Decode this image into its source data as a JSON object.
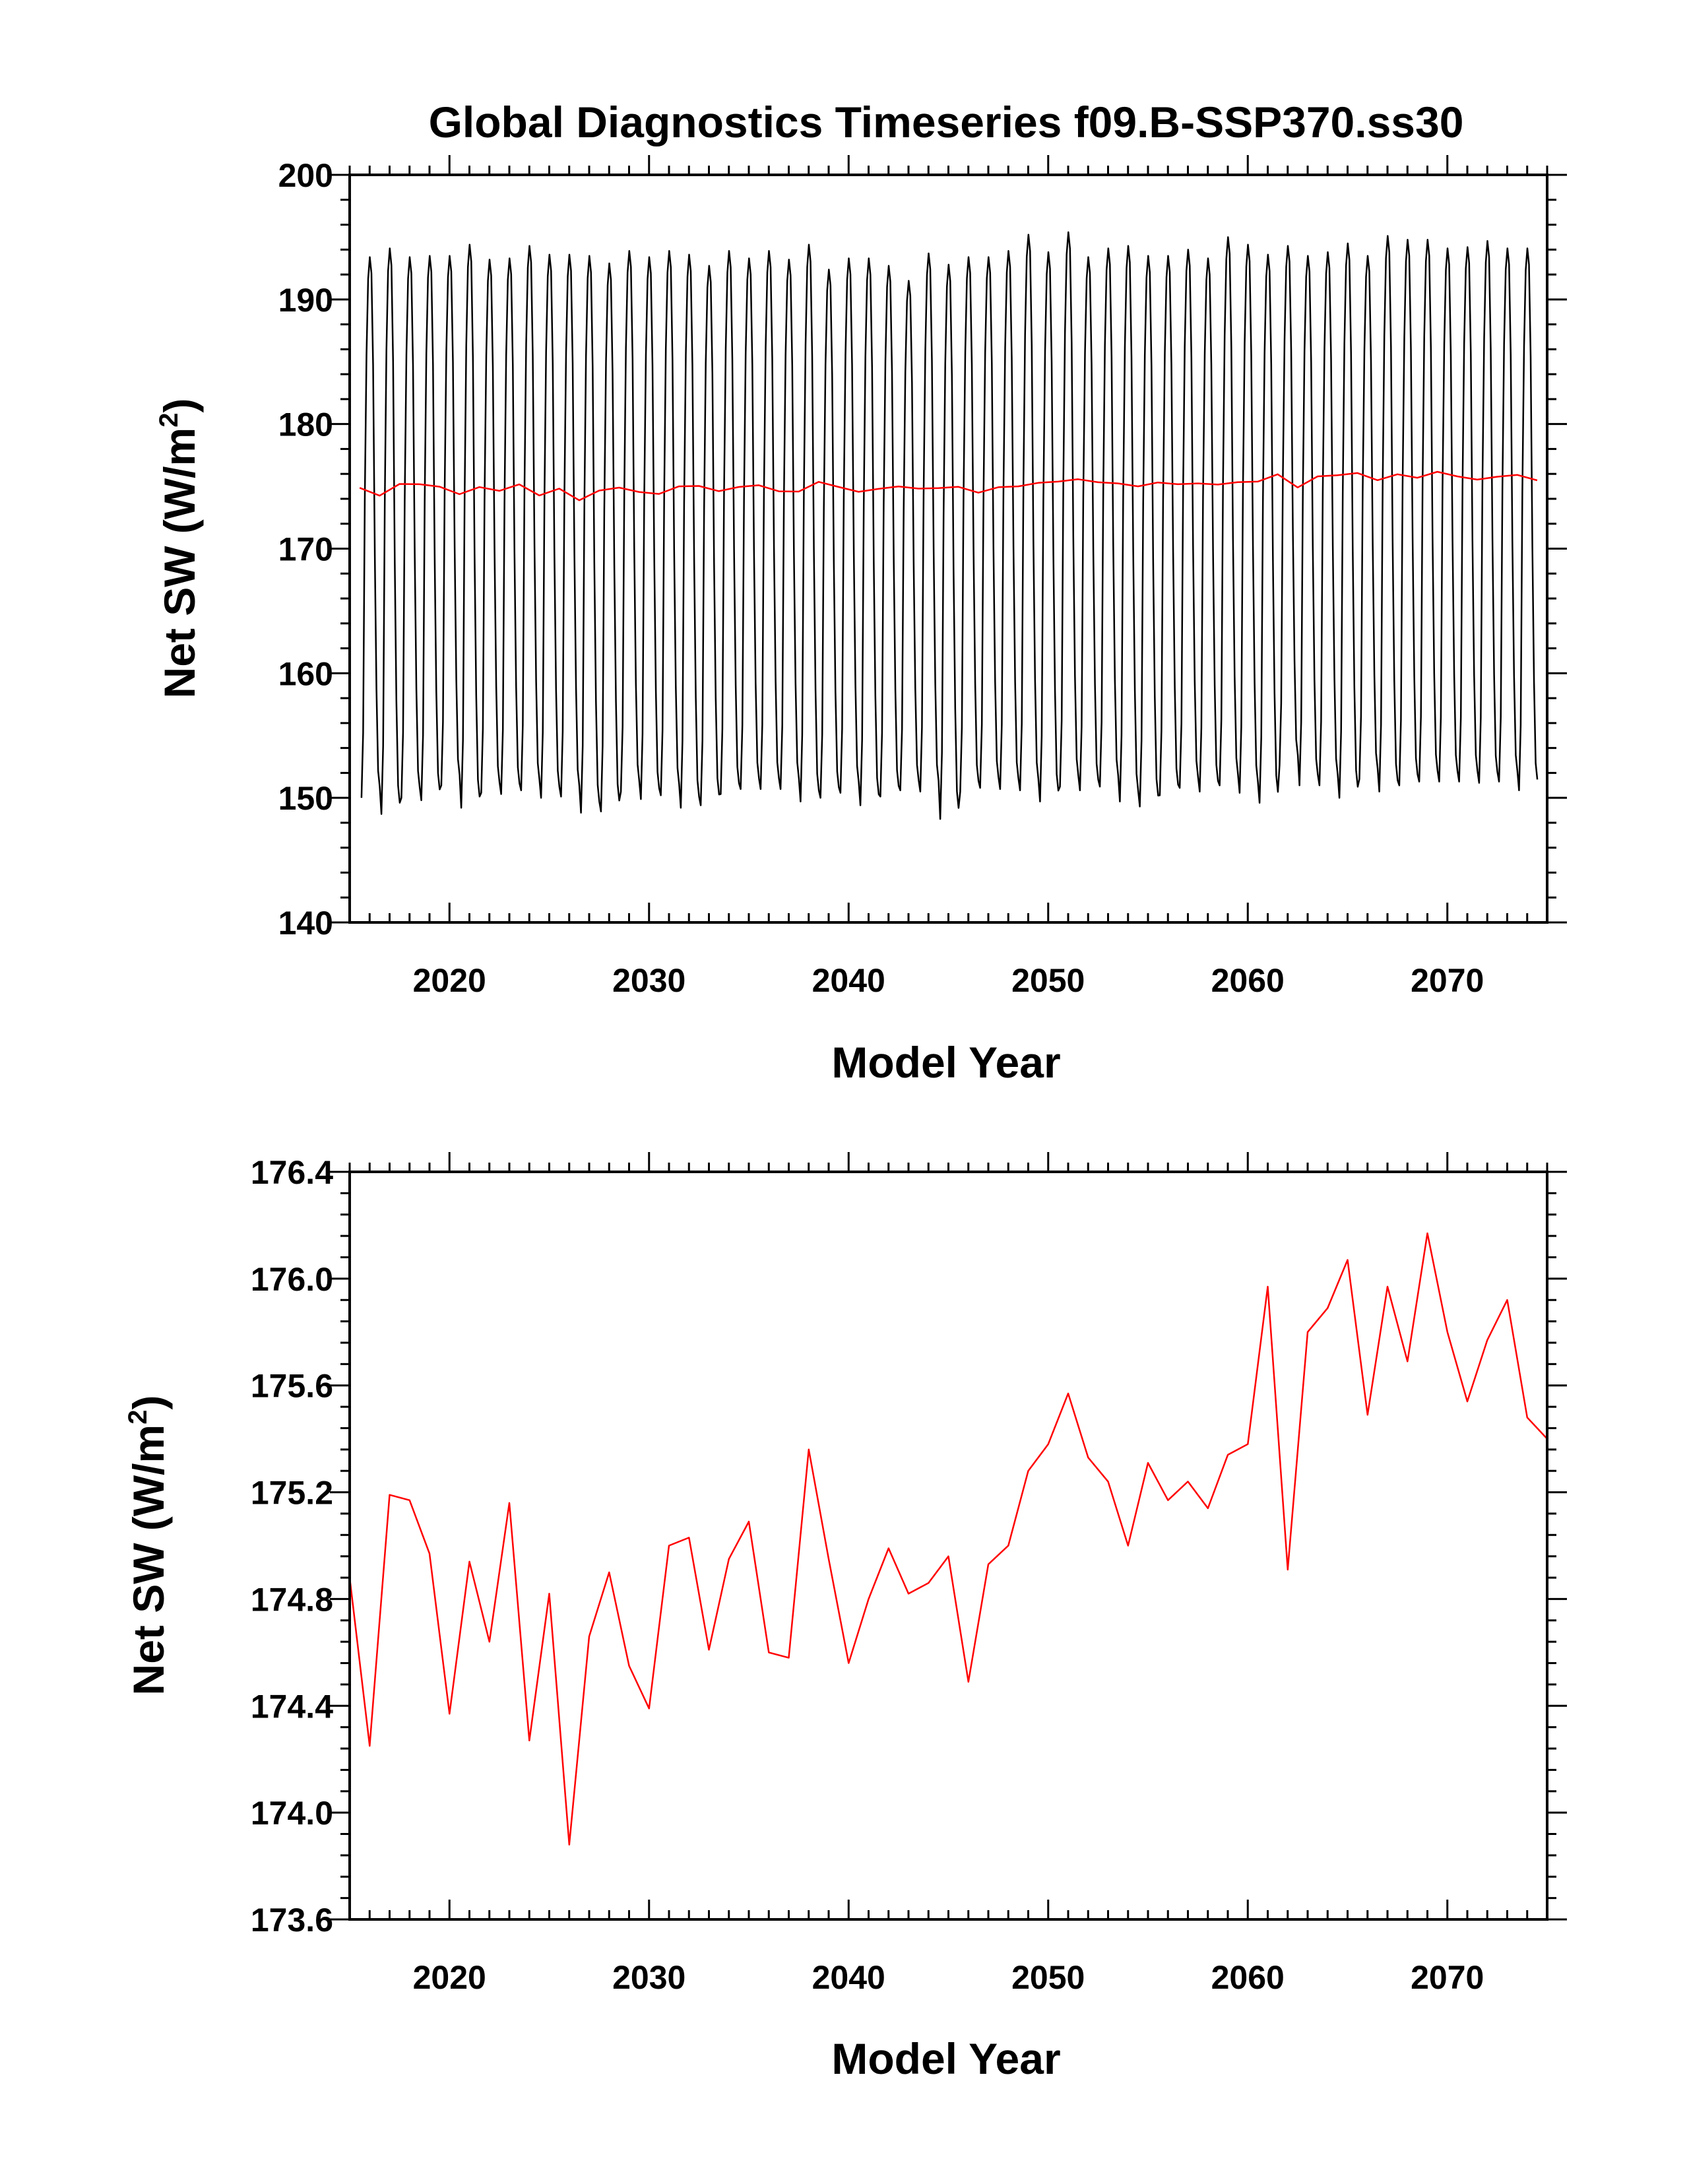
{
  "chart_data": [
    {
      "type": "line",
      "title": "Global Diagnostics Timeseries f09.B-SSP370.ss30",
      "xlabel": "Model Year",
      "ylabel": "Net SW (W/m",
      "ylabel_superscript": "2",
      "ylabel_suffix": ")",
      "xlim": [
        2015,
        2075
      ],
      "ylim": [
        140,
        200
      ],
      "xticks": [
        2020,
        2030,
        2040,
        2050,
        2060,
        2070
      ],
      "yticks": [
        140,
        150,
        160,
        170,
        180,
        190,
        200
      ],
      "x_tick_labels": [
        "2020",
        "2030",
        "2040",
        "2050",
        "2060",
        "2070"
      ],
      "y_tick_labels": [
        "140",
        "150",
        "160",
        "170",
        "180",
        "190",
        "200"
      ],
      "grid": false,
      "series": [
        {
          "kind": "monthly",
          "color": "#000000",
          "start_year": 2015,
          "annual_max": [
            193.4,
            194.1,
            193.4,
            193.5,
            193.5,
            194.4,
            193.2,
            193.3,
            194.3,
            193.6,
            193.6,
            193.5,
            192.9,
            193.9,
            193.4,
            193.9,
            193.6,
            192.7,
            193.9,
            193.3,
            193.9,
            193.2,
            194.4,
            192.4,
            193.3,
            193.3,
            192.7,
            191.5,
            193.7,
            192.8,
            193.4,
            193.4,
            193.9,
            195.2,
            193.8,
            195.4,
            193.4,
            194.1,
            194.3,
            193.5,
            193.5,
            194.0,
            193.3,
            195.0,
            194.4,
            193.6,
            194.3,
            193.5,
            193.8,
            194.5,
            193.5,
            195.1,
            194.8,
            194.8,
            194.1,
            194.2,
            194.7,
            194.1,
            194.1
          ],
          "annual_min": [
            150.0,
            148.7,
            150.0,
            149.8,
            151.0,
            149.2,
            150.4,
            150.3,
            150.6,
            150.0,
            150.1,
            148.8,
            148.9,
            150.5,
            149.9,
            150.2,
            149.2,
            149.4,
            150.3,
            150.7,
            150.7,
            150.7,
            149.7,
            150.0,
            150.4,
            149.4,
            150.1,
            150.6,
            150.5,
            148.3,
            150.5,
            150.8,
            150.7,
            150.6,
            149.7,
            150.9,
            150.6,
            150.9,
            149.7,
            149.3,
            150.2,
            150.8,
            150.5,
            151.0,
            150.4,
            149.6,
            152.6,
            151.0,
            151.0,
            150.0,
            151.5,
            150.5,
            151.0,
            151.3,
            151.3,
            151.3,
            151.2,
            151.3,
            150.6
          ]
        },
        {
          "kind": "annual",
          "color": "#ff0000",
          "x": [
            2015.5,
            2016.5,
            2017.5,
            2018.5,
            2019.5,
            2020.5,
            2021.5,
            2022.5,
            2023.5,
            2024.5,
            2025.5,
            2026.5,
            2027.5,
            2028.5,
            2029.5,
            2030.5,
            2031.5,
            2032.5,
            2033.5,
            2034.5,
            2035.5,
            2036.5,
            2037.5,
            2038.5,
            2039.5,
            2040.5,
            2041.5,
            2042.5,
            2043.5,
            2044.5,
            2045.5,
            2046.5,
            2047.5,
            2048.5,
            2049.5,
            2050.5,
            2051.5,
            2052.5,
            2053.5,
            2054.5,
            2055.5,
            2056.5,
            2057.5,
            2058.5,
            2059.5,
            2060.5,
            2061.5,
            2062.5,
            2063.5,
            2064.5,
            2065.5,
            2066.5,
            2067.5,
            2068.5,
            2069.5,
            2070.5,
            2071.5,
            2072.5,
            2073.5,
            2074.5
          ],
          "y": [
            174.88,
            174.25,
            175.19,
            175.17,
            174.97,
            174.37,
            174.94,
            174.64,
            175.16,
            174.27,
            174.82,
            173.88,
            174.66,
            174.9,
            174.55,
            174.39,
            175.0,
            175.03,
            174.61,
            174.95,
            175.09,
            174.6,
            174.58,
            175.36,
            174.95,
            174.56,
            174.8,
            174.99,
            174.82,
            174.86,
            174.96,
            174.49,
            174.93,
            175.0,
            175.28,
            175.38,
            175.57,
            175.33,
            175.24,
            175.0,
            175.31,
            175.17,
            175.24,
            175.14,
            175.34,
            175.38,
            175.97,
            174.91,
            175.8,
            175.89,
            176.07,
            175.49,
            175.97,
            175.69,
            176.17,
            175.8,
            175.54,
            175.77,
            175.92,
            175.48
          ]
        }
      ]
    },
    {
      "type": "line",
      "title": "",
      "xlabel": "Model Year",
      "ylabel": "Net SW (W/m",
      "ylabel_superscript": "2",
      "ylabel_suffix": ")",
      "xlim": [
        2015,
        2075
      ],
      "ylim": [
        173.6,
        176.4
      ],
      "xticks": [
        2020,
        2030,
        2040,
        2050,
        2060,
        2070
      ],
      "yticks": [
        173.6,
        174.0,
        174.4,
        174.8,
        175.2,
        175.6,
        176.0,
        176.4
      ],
      "x_tick_labels": [
        "2020",
        "2030",
        "2040",
        "2050",
        "2060",
        "2070"
      ],
      "y_tick_labels": [
        "173.6",
        "174.0",
        "174.4",
        "174.8",
        "175.2",
        "175.6",
        "176.0",
        "176.4"
      ],
      "grid": false,
      "series": [
        {
          "kind": "annual",
          "color": "#ff0000",
          "x": [
            2015.0,
            2016.0,
            2017.0,
            2018.0,
            2019.0,
            2020.0,
            2021.0,
            2022.0,
            2023.0,
            2024.0,
            2025.0,
            2026.0,
            2027.0,
            2028.0,
            2029.0,
            2030.0,
            2031.0,
            2032.0,
            2033.0,
            2034.0,
            2035.0,
            2036.0,
            2037.0,
            2038.0,
            2039.0,
            2040.0,
            2041.0,
            2042.0,
            2043.0,
            2044.0,
            2045.0,
            2046.0,
            2047.0,
            2048.0,
            2049.0,
            2050.0,
            2051.0,
            2052.0,
            2053.0,
            2054.0,
            2055.0,
            2056.0,
            2057.0,
            2058.0,
            2059.0,
            2060.0,
            2061.0,
            2062.0,
            2063.0,
            2064.0,
            2065.0,
            2066.0,
            2067.0,
            2068.0,
            2069.0,
            2070.0,
            2071.0,
            2072.0,
            2073.0,
            2074.0,
            2075.0
          ],
          "y": [
            174.88,
            174.25,
            175.19,
            175.17,
            174.97,
            174.37,
            174.94,
            174.64,
            175.16,
            174.27,
            174.82,
            173.88,
            174.66,
            174.9,
            174.55,
            174.39,
            175.0,
            175.03,
            174.61,
            174.95,
            175.09,
            174.6,
            174.58,
            175.36,
            174.95,
            174.56,
            174.8,
            174.99,
            174.82,
            174.86,
            174.96,
            174.49,
            174.93,
            175.0,
            175.28,
            175.38,
            175.57,
            175.33,
            175.24,
            175.0,
            175.31,
            175.17,
            175.24,
            175.14,
            175.34,
            175.38,
            175.97,
            174.91,
            175.8,
            175.89,
            176.07,
            175.49,
            175.97,
            175.69,
            176.17,
            175.8,
            175.54,
            175.77,
            175.92,
            175.48,
            175.4
          ]
        }
      ]
    }
  ]
}
